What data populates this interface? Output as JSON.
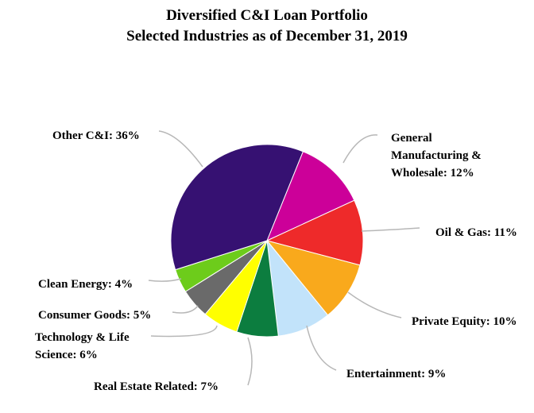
{
  "chart_data": {
    "type": "pie",
    "title": "Diversified C&I Loan Portfolio",
    "subtitle": "Selected Industries as of December 31, 2019",
    "slices": [
      {
        "key": "gm",
        "label": "General Manufacturing & Wholesale: 12%",
        "label_lines": [
          "General",
          "Manufacturing &",
          "Wholesale: 12%"
        ],
        "value": 12,
        "color": "#cc0099"
      },
      {
        "key": "oil",
        "label": "Oil & Gas: 11%",
        "label_lines": [
          "Oil & Gas: 11%"
        ],
        "value": 11,
        "color": "#ee2a2a"
      },
      {
        "key": "pe",
        "label": "Private Equity: 10%",
        "label_lines": [
          "Private Equity: 10%"
        ],
        "value": 10,
        "color": "#f9a91c"
      },
      {
        "key": "ent",
        "label": "Entertainment: 9%",
        "label_lines": [
          "Entertainment: 9%"
        ],
        "value": 9,
        "color": "#c2e3fa"
      },
      {
        "key": "re",
        "label": "Real Estate Related: 7%",
        "label_lines": [
          "Real Estate Related: 7%"
        ],
        "value": 7,
        "color": "#0c7d3f"
      },
      {
        "key": "tech",
        "label": "Technology & Life Science: 6%",
        "label_lines": [
          "Technology & Life",
          "Science: 6%"
        ],
        "value": 6,
        "color": "#ffff00"
      },
      {
        "key": "cons",
        "label": "Consumer Goods: 5%",
        "label_lines": [
          "Consumer Goods: 5%"
        ],
        "value": 5,
        "color": "#6a6a6a"
      },
      {
        "key": "clean",
        "label": "Clean Energy: 4%",
        "label_lines": [
          "Clean Energy: 4%"
        ],
        "value": 4,
        "color": "#6dcc1b"
      },
      {
        "key": "other",
        "label": "Other C&I: 36%",
        "label_lines": [
          "Other C&I: 36%"
        ],
        "value": 36,
        "color": "#361172"
      }
    ],
    "start_angle_deg": 22
  }
}
